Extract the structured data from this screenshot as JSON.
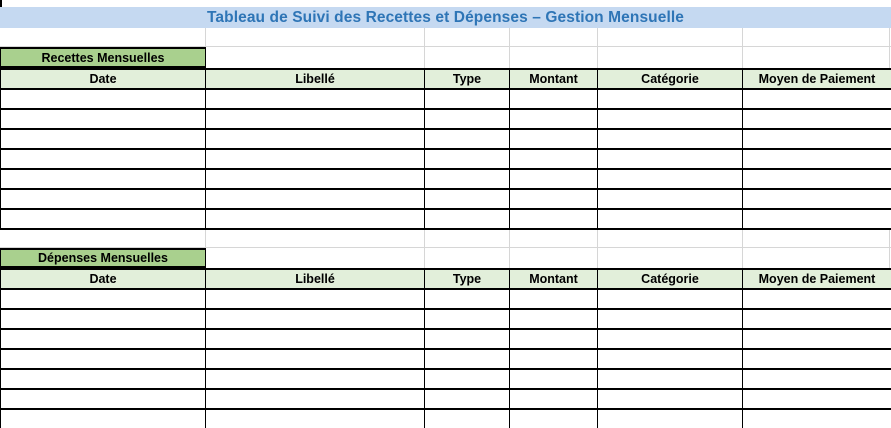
{
  "title_banner": {
    "text": "Tableau de Suivi des Recettes et Dépenses – Gestion Mensuelle"
  },
  "columns": {
    "labels": [
      "Date",
      "Libellé",
      "Type",
      "Montant",
      "Catégorie",
      "Moyen de Paiement"
    ]
  },
  "sections": [
    {
      "title": "Recettes Mensuelles",
      "empty_rows": 7
    },
    {
      "title": "Dépenses Mensuelles",
      "empty_rows": 7
    }
  ],
  "colors": {
    "banner_bg": "#C5D9F1",
    "banner_text": "#2E75B6",
    "section_title_bg": "#A9D08E",
    "column_header_bg": "#E2EFDA",
    "table_border": "#000000",
    "gridline": "#D6D6D6",
    "cell_bg": "#FFFFFF"
  }
}
